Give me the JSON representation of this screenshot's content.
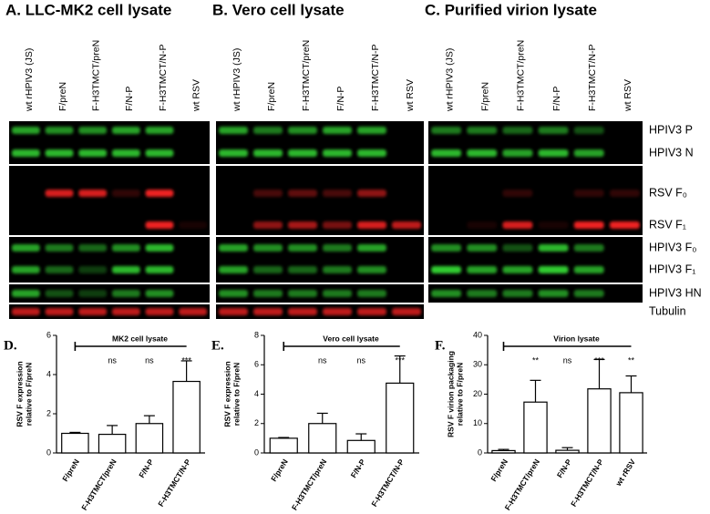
{
  "blots": {
    "panels": [
      {
        "title": "A. LLC-MK2 cell lysate",
        "lanes": [
          "wt rHPIV3 (JS)",
          "F/preN",
          "F-H3TMCT/preN",
          "F/N-P",
          "F-H3TMCT/N-P",
          "wt RSV"
        ]
      },
      {
        "title": "B. Vero cell lysate",
        "lanes": [
          "wt rHPIV3 (JS)",
          "F/preN",
          "F-H3TMCT/preN",
          "F/N-P",
          "F-H3TMCT/N-P",
          "wt RSV"
        ]
      },
      {
        "title": "C. Purified virion lysate",
        "lanes": [
          "wt rHPIV3 (JS)",
          "F/preN",
          "F-H3TMCT/preN",
          "F/N-P",
          "F-H3TMCT/N-P",
          "wt RSV"
        ]
      }
    ],
    "bands": [
      "HPIV3 P",
      "HPIV3 N",
      "RSV F₀",
      "RSV F₁",
      "HPIV3 F₀",
      "HPIV3 F₁",
      "HPIV3 HN",
      "Tubulin"
    ]
  },
  "chart_data": [
    {
      "type": "bar",
      "panel": "D.",
      "annotation": "MK2 cell lysate",
      "ylabel": [
        "RSV F expression",
        "relative to F/preN"
      ],
      "categories": [
        "F/preN",
        "F-H3TMCT/preN",
        "F/N-P",
        "F-H3TMCT/N-P"
      ],
      "values": [
        1.0,
        0.95,
        1.5,
        3.65
      ],
      "errors": [
        0.05,
        0.45,
        0.4,
        1.05
      ],
      "significance": [
        null,
        "ns",
        "ns",
        "***"
      ],
      "ylim": [
        0,
        6
      ],
      "yticks": [
        0,
        2,
        4,
        6
      ]
    },
    {
      "type": "bar",
      "panel": "E.",
      "annotation": "Vero cell lysate",
      "ylabel": [
        "RSV F expression",
        "relative to F/preN"
      ],
      "categories": [
        "F/preN",
        "F-H3TMCT/preN",
        "F/N-P",
        "F-H3TMCT/N-P"
      ],
      "values": [
        1.0,
        2.0,
        0.85,
        4.75
      ],
      "errors": [
        0.05,
        0.7,
        0.45,
        1.85
      ],
      "significance": [
        null,
        "ns",
        "ns",
        "***"
      ],
      "ylim": [
        0,
        8
      ],
      "yticks": [
        0,
        2,
        4,
        6,
        8
      ]
    },
    {
      "type": "bar",
      "panel": "F.",
      "annotation": "Virion lysate",
      "ylabel": [
        "RSV F virion packaging",
        "relative to F/preN"
      ],
      "categories": [
        "F/preN",
        "F-H3TMCT/preN",
        "F/N-P",
        "F-H3TMCT/N-P",
        "wt rRSV"
      ],
      "values": [
        0.8,
        17.3,
        0.9,
        21.8,
        20.5
      ],
      "errors": [
        0.4,
        7.4,
        0.9,
        10,
        5.7
      ],
      "significance": [
        null,
        "**",
        "ns",
        "***",
        "**"
      ],
      "ylim": [
        0,
        40
      ],
      "yticks": [
        0,
        10,
        20,
        30,
        40
      ]
    }
  ]
}
